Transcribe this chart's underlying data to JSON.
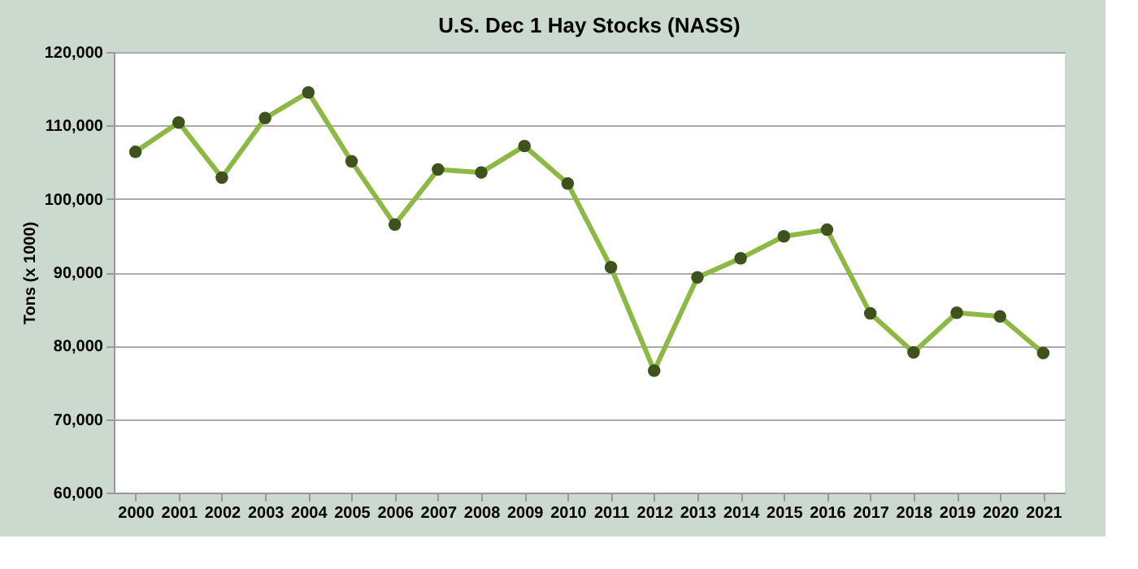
{
  "chart_data": {
    "type": "line",
    "title": "U.S. Dec 1 Hay Stocks (NASS)",
    "ylabel": "Tons (x 1000)",
    "categories": [
      "2000",
      "2001",
      "2002",
      "2003",
      "2004",
      "2005",
      "2006",
      "2007",
      "2008",
      "2009",
      "2010",
      "2011",
      "2012",
      "2013",
      "2014",
      "2015",
      "2016",
      "2017",
      "2018",
      "2019",
      "2020",
      "2021"
    ],
    "series": [
      {
        "color": "#8db843",
        "values": [
          106400,
          110400,
          102900,
          111000,
          114500,
          105100,
          96500,
          104000,
          103600,
          107200,
          102100,
          90700,
          76600,
          89300,
          91900,
          94900,
          95800,
          84400,
          79100,
          84500,
          84000,
          79000
        ]
      }
    ],
    "ylim": [
      60000,
      120000
    ],
    "yticks": [
      {
        "value": 60000,
        "label": "60,000"
      },
      {
        "value": 70000,
        "label": "70,000"
      },
      {
        "value": 80000,
        "label": "80,000"
      },
      {
        "value": 90000,
        "label": "90,000"
      },
      {
        "value": 100000,
        "label": "100,000"
      },
      {
        "value": 110000,
        "label": "110,000"
      },
      {
        "value": 120000,
        "label": "120,000"
      }
    ],
    "grid": "y",
    "legend": false,
    "marker": "circle",
    "line_style": "solid"
  }
}
